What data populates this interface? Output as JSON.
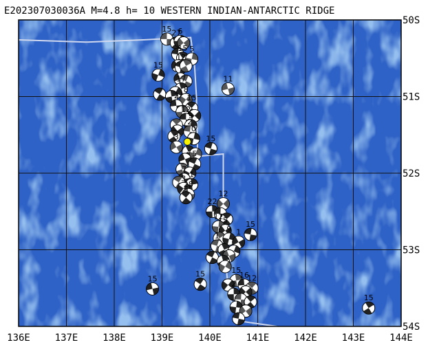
{
  "title": "E202307030036A M=4.8 h= 10 WESTERN INDIAN-ANTARCTIC RIDGE",
  "colors": {
    "ocean": "#2f62c6",
    "shallow": "#4f86dc",
    "grid": "#111111",
    "ridge": "#cfd8ee",
    "frame": "#000000",
    "epicenter": "#f7f200"
  },
  "map": {
    "lon_range": [
      136,
      144
    ],
    "lat_range": [
      -54,
      -50
    ],
    "lon_ticks": [
      "136E",
      "137E",
      "138E",
      "139E",
      "140E",
      "141E",
      "142E",
      "143E",
      "144E"
    ],
    "lat_ticks": [
      "50S",
      "51S",
      "52S",
      "53S",
      "54S"
    ],
    "epicenter": {
      "lon": 139.53,
      "lat": -51.59
    },
    "ridge_path": [
      {
        "lon": 136.0,
        "lat": -50.26
      },
      {
        "lon": 137.4,
        "lat": -50.29
      },
      {
        "lon": 138.6,
        "lat": -50.26
      },
      {
        "lon": 139.6,
        "lat": -50.23
      },
      {
        "lon": 139.68,
        "lat": -50.6
      },
      {
        "lon": 139.72,
        "lat": -51.0
      },
      {
        "lon": 139.74,
        "lat": -51.6
      },
      {
        "lon": 139.74,
        "lat": -51.78
      },
      {
        "lon": 140.28,
        "lat": -51.75
      },
      {
        "lon": 140.28,
        "lat": -52.2
      },
      {
        "lon": 140.32,
        "lat": -53.1
      },
      {
        "lon": 140.4,
        "lat": -53.6
      },
      {
        "lon": 140.62,
        "lat": -53.93
      },
      {
        "lon": 141.4,
        "lat": -54.0
      }
    ],
    "mechanisms": [
      {
        "lon": 139.1,
        "lat": -50.25,
        "label": "15"
      },
      {
        "lon": 139.3,
        "lat": -50.3,
        "label": "27"
      },
      {
        "lon": 139.38,
        "lat": -50.28,
        "label": "6"
      },
      {
        "lon": 139.45,
        "lat": -50.3,
        "label": ""
      },
      {
        "lon": 139.33,
        "lat": -50.45,
        "label": ""
      },
      {
        "lon": 139.43,
        "lat": -50.5,
        "label": "15"
      },
      {
        "lon": 139.62,
        "lat": -50.51,
        "label": "5"
      },
      {
        "lon": 139.33,
        "lat": -50.6,
        "label": ""
      },
      {
        "lon": 139.4,
        "lat": -50.62,
        "label": "12"
      },
      {
        "lon": 139.5,
        "lat": -50.6,
        "label": ""
      },
      {
        "lon": 138.92,
        "lat": -50.72,
        "label": "15"
      },
      {
        "lon": 139.38,
        "lat": -50.77,
        "label": ""
      },
      {
        "lon": 139.5,
        "lat": -50.8,
        "label": ""
      },
      {
        "lon": 139.4,
        "lat": -50.9,
        "label": "17"
      },
      {
        "lon": 139.28,
        "lat": -50.95,
        "label": ""
      },
      {
        "lon": 140.38,
        "lat": -50.9,
        "label": "11"
      },
      {
        "lon": 138.95,
        "lat": -50.97,
        "label": ""
      },
      {
        "lon": 139.2,
        "lat": -51.0,
        "label": ""
      },
      {
        "lon": 139.5,
        "lat": -51.04,
        "label": "8"
      },
      {
        "lon": 139.3,
        "lat": -51.12,
        "label": "2"
      },
      {
        "lon": 139.62,
        "lat": -51.15,
        "label": "15"
      },
      {
        "lon": 139.42,
        "lat": -51.2,
        "label": ""
      },
      {
        "lon": 139.68,
        "lat": -51.25,
        "label": ""
      },
      {
        "lon": 139.5,
        "lat": -51.3,
        "label": "12"
      },
      {
        "lon": 139.3,
        "lat": -51.37,
        "label": ""
      },
      {
        "lon": 139.6,
        "lat": -51.38,
        "label": "9"
      },
      {
        "lon": 139.32,
        "lat": -51.45,
        "label": ""
      },
      {
        "lon": 139.58,
        "lat": -51.46,
        "label": "2"
      },
      {
        "lon": 139.25,
        "lat": -51.52,
        "label": ""
      },
      {
        "lon": 139.66,
        "lat": -51.55,
        "label": "0"
      },
      {
        "lon": 139.3,
        "lat": -51.66,
        "label": "3"
      },
      {
        "lon": 140.02,
        "lat": -51.68,
        "label": "15"
      },
      {
        "lon": 139.55,
        "lat": -51.72,
        "label": ""
      },
      {
        "lon": 139.7,
        "lat": -51.75,
        "label": ""
      },
      {
        "lon": 139.48,
        "lat": -51.82,
        "label": ""
      },
      {
        "lon": 139.68,
        "lat": -51.88,
        "label": "5"
      },
      {
        "lon": 139.42,
        "lat": -51.95,
        "label": ""
      },
      {
        "lon": 139.58,
        "lat": -52.0,
        "label": ""
      },
      {
        "lon": 139.46,
        "lat": -52.08,
        "label": "7"
      },
      {
        "lon": 139.35,
        "lat": -52.12,
        "label": ""
      },
      {
        "lon": 139.62,
        "lat": -52.15,
        "label": "1"
      },
      {
        "lon": 139.45,
        "lat": -52.2,
        "label": "3"
      },
      {
        "lon": 139.55,
        "lat": -52.28,
        "label": "28"
      },
      {
        "lon": 139.5,
        "lat": -52.32,
        "label": ""
      },
      {
        "lon": 140.05,
        "lat": -52.5,
        "label": "22"
      },
      {
        "lon": 140.28,
        "lat": -52.4,
        "label": "12"
      },
      {
        "lon": 140.22,
        "lat": -52.53,
        "label": ""
      },
      {
        "lon": 140.35,
        "lat": -52.6,
        "label": ""
      },
      {
        "lon": 140.18,
        "lat": -52.7,
        "label": "12"
      },
      {
        "lon": 140.32,
        "lat": -52.75,
        "label": "5"
      },
      {
        "lon": 140.85,
        "lat": -52.8,
        "label": "15"
      },
      {
        "lon": 140.2,
        "lat": -52.85,
        "label": ""
      },
      {
        "lon": 140.4,
        "lat": -52.86,
        "label": "9"
      },
      {
        "lon": 140.6,
        "lat": -52.9,
        "label": "1"
      },
      {
        "lon": 140.15,
        "lat": -52.95,
        "label": "1"
      },
      {
        "lon": 140.3,
        "lat": -53.0,
        "label": ""
      },
      {
        "lon": 140.5,
        "lat": -53.02,
        "label": ""
      },
      {
        "lon": 140.4,
        "lat": -53.08,
        "label": ""
      },
      {
        "lon": 140.05,
        "lat": -53.1,
        "label": ""
      },
      {
        "lon": 140.28,
        "lat": -53.15,
        "label": ""
      },
      {
        "lon": 140.32,
        "lat": -53.22,
        "label": ""
      },
      {
        "lon": 138.8,
        "lat": -53.51,
        "label": "15"
      },
      {
        "lon": 139.8,
        "lat": -53.45,
        "label": "15"
      },
      {
        "lon": 140.55,
        "lat": -53.4,
        "label": "15"
      },
      {
        "lon": 140.38,
        "lat": -53.46,
        "label": ""
      },
      {
        "lon": 140.72,
        "lat": -53.46,
        "label": "16"
      },
      {
        "lon": 140.88,
        "lat": -53.5,
        "label": "12"
      },
      {
        "lon": 140.5,
        "lat": -53.58,
        "label": "2"
      },
      {
        "lon": 140.75,
        "lat": -53.55,
        "label": ""
      },
      {
        "lon": 140.65,
        "lat": -53.65,
        "label": ""
      },
      {
        "lon": 140.85,
        "lat": -53.68,
        "label": ""
      },
      {
        "lon": 140.55,
        "lat": -53.75,
        "label": ""
      },
      {
        "lon": 140.75,
        "lat": -53.8,
        "label": ""
      },
      {
        "lon": 140.6,
        "lat": -53.9,
        "label": ""
      },
      {
        "lon": 143.32,
        "lat": -53.76,
        "label": "15"
      }
    ]
  }
}
